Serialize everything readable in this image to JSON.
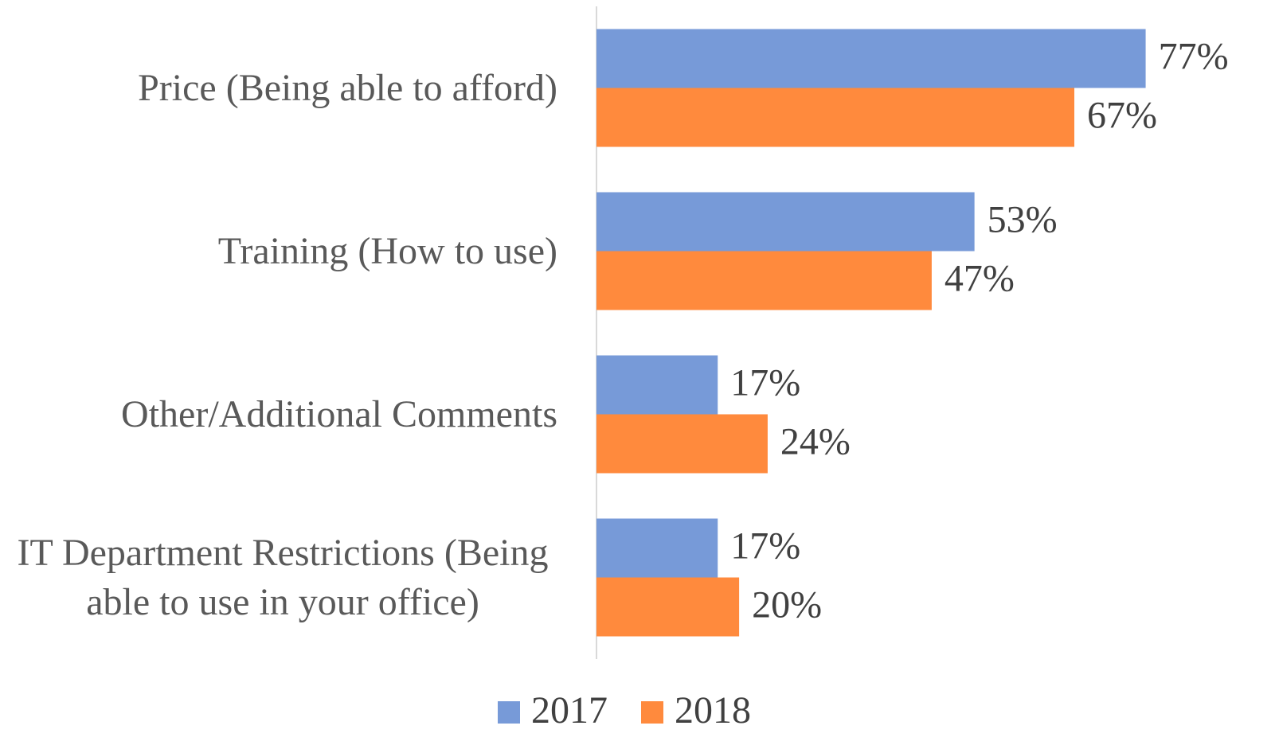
{
  "chart_data": {
    "type": "bar",
    "orientation": "horizontal",
    "categories": [
      "Price (Being able to afford)",
      "Training (How to use)",
      "Other/Additional Comments",
      "IT Department Restrictions (Being able to use in your office)"
    ],
    "series": [
      {
        "name": "2017",
        "color": "#779ad8",
        "values": [
          77,
          53,
          17,
          17
        ],
        "value_labels": [
          "77%",
          "53%",
          "17%",
          "17%"
        ]
      },
      {
        "name": "2018",
        "color": "#ff8a3d",
        "values": [
          67,
          47,
          24,
          20
        ],
        "value_labels": [
          "67%",
          "47%",
          "24%",
          "20%"
        ]
      }
    ],
    "xlim": [
      0,
      90
    ],
    "legend": "bottom"
  }
}
